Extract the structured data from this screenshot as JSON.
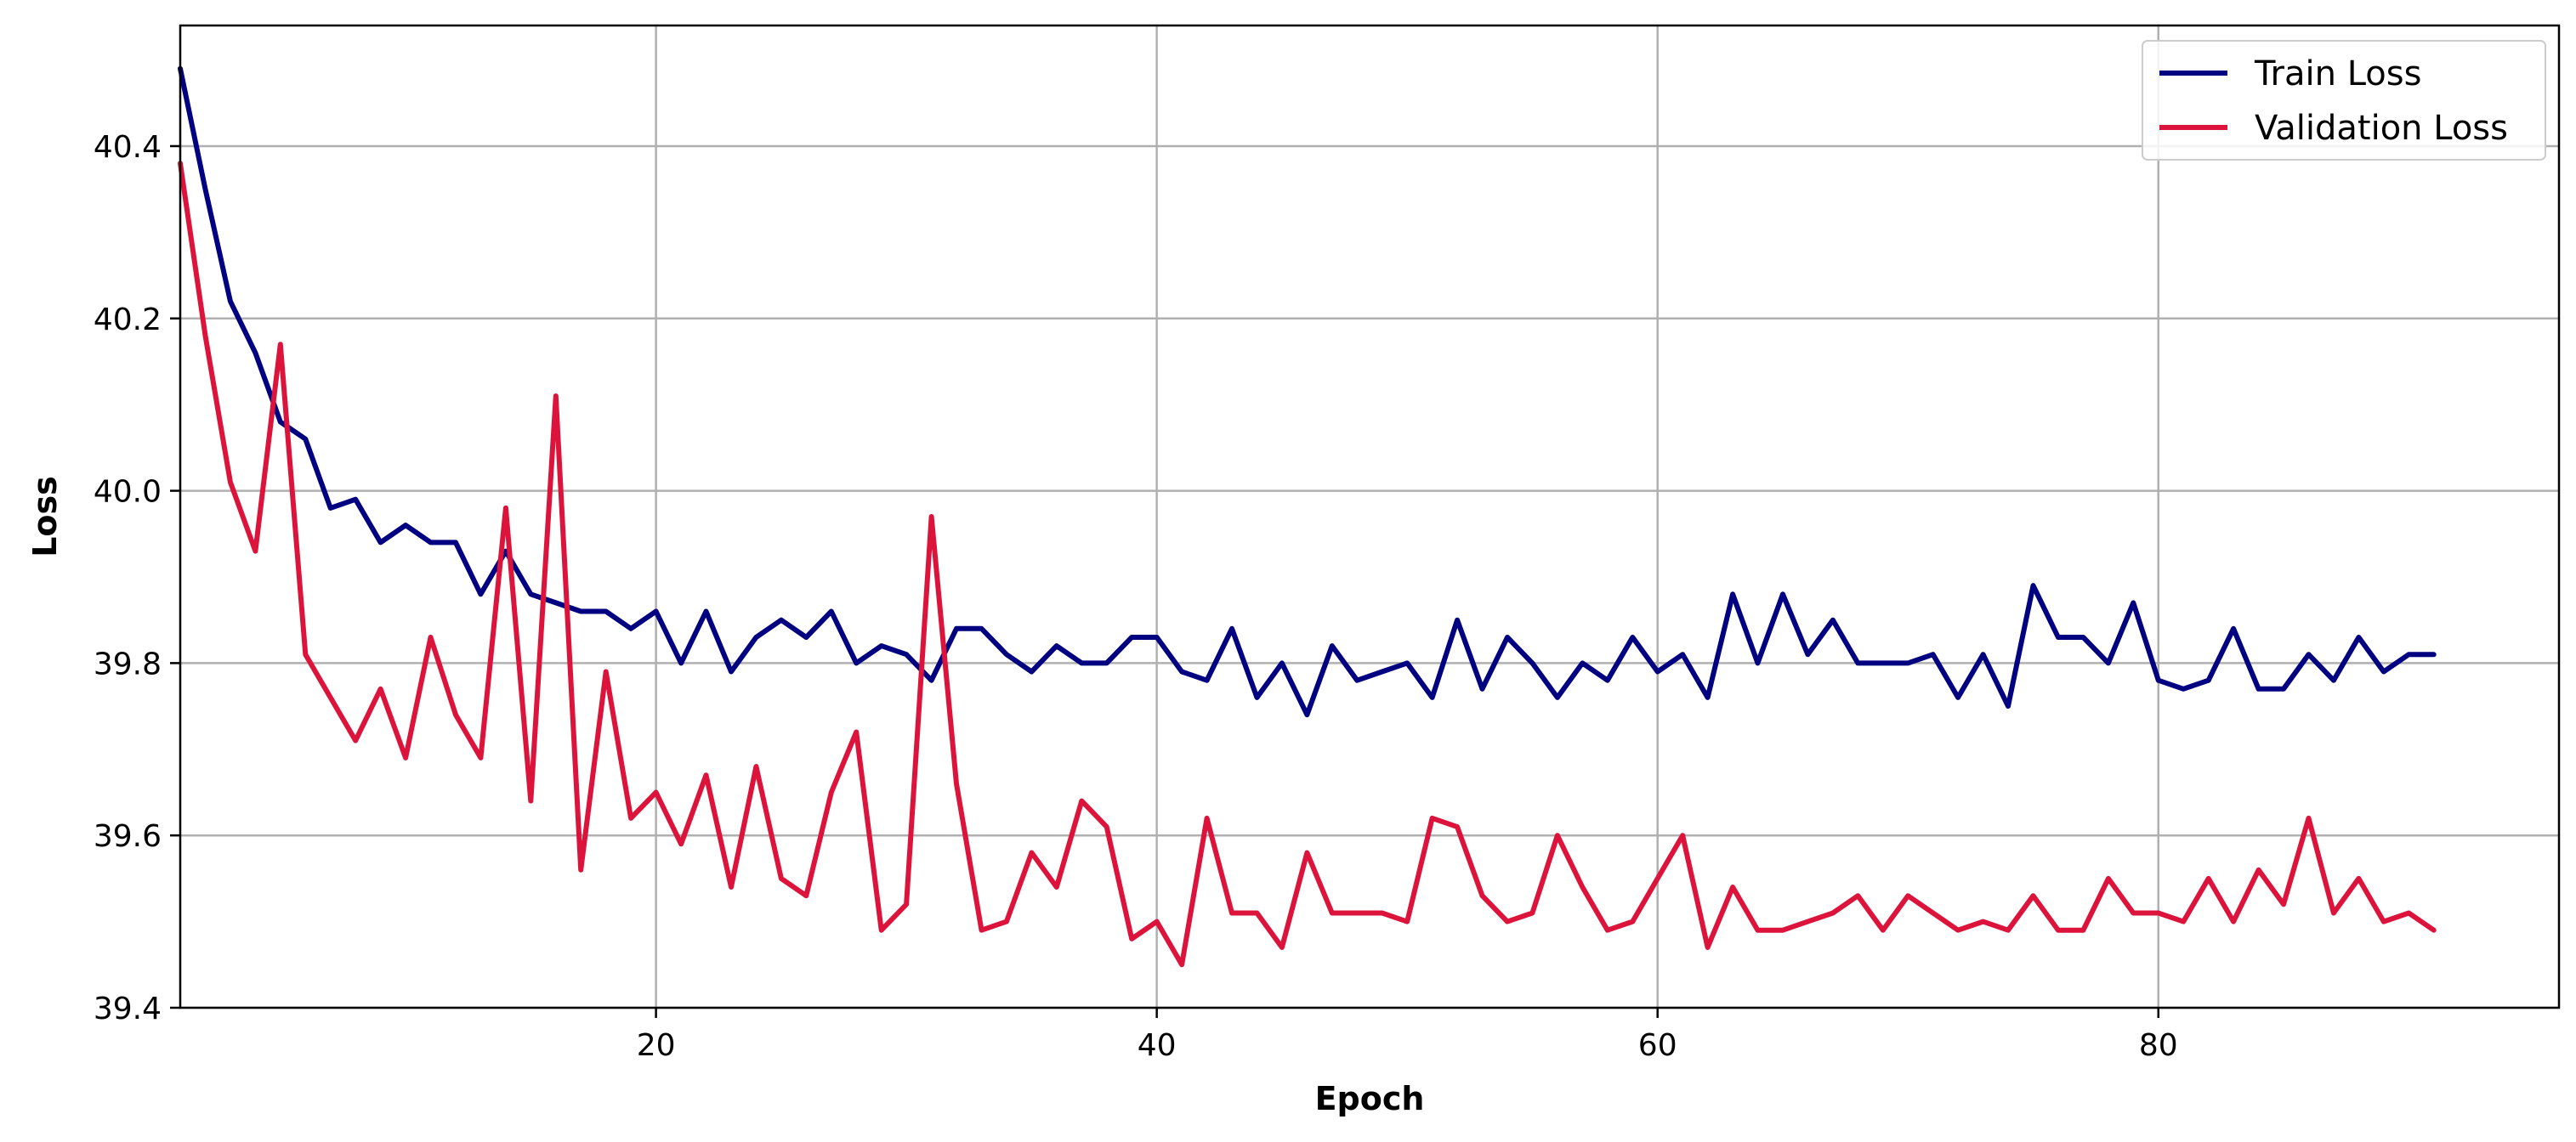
{
  "chart_data": {
    "type": "line",
    "title": "",
    "xlabel": "Epoch",
    "ylabel": "Loss",
    "xlim": [
      1,
      96
    ],
    "ylim": [
      39.4,
      40.54
    ],
    "xticks": [
      20,
      40,
      60,
      80
    ],
    "yticks": [
      39.4,
      39.6,
      39.8,
      40.0,
      40.2,
      40.4
    ],
    "xtick_labels": [
      "20",
      "40",
      "60",
      "80"
    ],
    "ytick_labels": [
      "39.4",
      "39.6",
      "39.8",
      "40.0",
      "40.2",
      "40.4"
    ],
    "grid": true,
    "legend_position": "top-right",
    "x": [
      1,
      2,
      3,
      4,
      5,
      6,
      7,
      8,
      9,
      10,
      11,
      12,
      13,
      14,
      15,
      16,
      17,
      18,
      19,
      20,
      21,
      22,
      23,
      24,
      25,
      26,
      27,
      28,
      29,
      30,
      31,
      32,
      33,
      34,
      35,
      36,
      37,
      38,
      39,
      40,
      41,
      42,
      43,
      44,
      45,
      46,
      47,
      48,
      49,
      50,
      51,
      52,
      53,
      54,
      55,
      56,
      57,
      58,
      59,
      60,
      61,
      62,
      63,
      64,
      65,
      66,
      67,
      68,
      69,
      70,
      71,
      72,
      73,
      74,
      75,
      76,
      77,
      78,
      79,
      80,
      81,
      82,
      83,
      84,
      85,
      86,
      87,
      88,
      89,
      90,
      91
    ],
    "series": [
      {
        "name": "Train Loss",
        "color": "#000080",
        "values": [
          40.49,
          40.35,
          40.22,
          40.16,
          40.08,
          40.06,
          39.98,
          39.99,
          39.94,
          39.96,
          39.94,
          39.94,
          39.88,
          39.93,
          39.88,
          39.87,
          39.86,
          39.86,
          39.84,
          39.86,
          39.8,
          39.86,
          39.79,
          39.83,
          39.85,
          39.83,
          39.86,
          39.8,
          39.82,
          39.81,
          39.78,
          39.84,
          39.84,
          39.81,
          39.79,
          39.82,
          39.8,
          39.8,
          39.83,
          39.83,
          39.79,
          39.78,
          39.84,
          39.76,
          39.8,
          39.74,
          39.82,
          39.78,
          39.79,
          39.8,
          39.76,
          39.85,
          39.77,
          39.83,
          39.8,
          39.76,
          39.8,
          39.78,
          39.83,
          39.79,
          39.81,
          39.76,
          39.88,
          39.8,
          39.88,
          39.81,
          39.85,
          39.8,
          39.8,
          39.8,
          39.81,
          39.76,
          39.81,
          39.75,
          39.89,
          39.83,
          39.83,
          39.8,
          39.87,
          39.78,
          39.77,
          39.78,
          39.84,
          39.77,
          39.77,
          39.81,
          39.78,
          39.83,
          39.79,
          39.81,
          39.81
        ]
      },
      {
        "name": "Validation Loss",
        "color": "#DC143C",
        "values": [
          40.38,
          40.18,
          40.01,
          39.93,
          40.17,
          39.81,
          39.76,
          39.71,
          39.77,
          39.69,
          39.83,
          39.74,
          39.69,
          39.98,
          39.64,
          40.11,
          39.56,
          39.79,
          39.62,
          39.65,
          39.59,
          39.67,
          39.54,
          39.68,
          39.55,
          39.53,
          39.65,
          39.72,
          39.49,
          39.52,
          39.97,
          39.66,
          39.49,
          39.5,
          39.58,
          39.54,
          39.64,
          39.61,
          39.48,
          39.5,
          39.45,
          39.62,
          39.51,
          39.51,
          39.47,
          39.58,
          39.51,
          39.51,
          39.51,
          39.5,
          39.62,
          39.61,
          39.53,
          39.5,
          39.51,
          39.6,
          39.54,
          39.49,
          39.5,
          39.55,
          39.6,
          39.47,
          39.54,
          39.49,
          39.49,
          39.5,
          39.51,
          39.53,
          39.49,
          39.53,
          39.51,
          39.49,
          39.5,
          39.49,
          39.53,
          39.49,
          39.49,
          39.55,
          39.51,
          39.51,
          39.5,
          39.55,
          39.5,
          39.56,
          39.52,
          39.62,
          39.51,
          39.55,
          39.5,
          39.51,
          39.49
        ]
      }
    ]
  }
}
